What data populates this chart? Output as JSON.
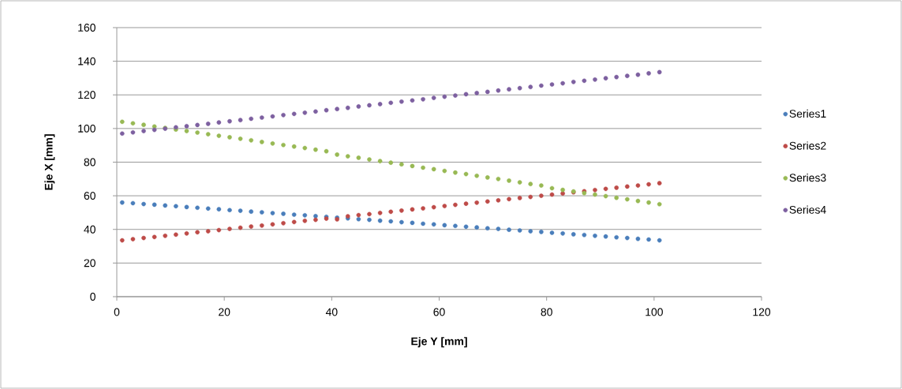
{
  "chart_data": {
    "type": "scatter",
    "xlabel": "Eje Y [mm]",
    "ylabel": "Eje X [mm]",
    "x": [
      1,
      3,
      5,
      7,
      9,
      11,
      13,
      15,
      17,
      19,
      21,
      23,
      25,
      27,
      29,
      31,
      33,
      35,
      37,
      39,
      41,
      43,
      45,
      47,
      49,
      51,
      53,
      55,
      57,
      59,
      61,
      63,
      65,
      67,
      69,
      71,
      73,
      75,
      77,
      79,
      81,
      83,
      85,
      87,
      89,
      91,
      93,
      95,
      97,
      99,
      101
    ],
    "series": [
      {
        "name": "Series1",
        "color": "#4a7ebb",
        "values": [
          56.0,
          55.6,
          55.1,
          54.7,
          54.2,
          53.8,
          53.3,
          52.9,
          52.4,
          52.0,
          51.5,
          51.1,
          50.6,
          50.2,
          49.7,
          49.3,
          48.8,
          48.4,
          47.9,
          47.5,
          47.0,
          46.6,
          46.1,
          45.7,
          45.2,
          44.8,
          44.3,
          43.9,
          43.4,
          43.0,
          42.5,
          42.1,
          41.6,
          41.2,
          40.7,
          40.3,
          39.8,
          39.4,
          38.9,
          38.5,
          38.0,
          37.6,
          37.1,
          36.7,
          36.2,
          35.8,
          35.3,
          34.9,
          34.4,
          34.0,
          33.5
        ]
      },
      {
        "name": "Series2",
        "color": "#be4b48",
        "values": [
          33.5,
          34.2,
          34.9,
          35.5,
          36.2,
          36.9,
          37.6,
          38.3,
          38.9,
          39.6,
          40.3,
          41.0,
          41.7,
          42.3,
          43.0,
          43.7,
          44.4,
          45.1,
          45.7,
          46.4,
          46.0,
          47.8,
          48.5,
          49.1,
          49.8,
          50.5,
          51.2,
          51.9,
          52.5,
          53.2,
          53.9,
          54.6,
          55.3,
          55.9,
          56.6,
          57.3,
          58.0,
          58.7,
          59.3,
          60.0,
          60.7,
          61.4,
          62.1,
          62.7,
          63.4,
          64.1,
          64.8,
          65.5,
          66.1,
          66.8,
          67.5
        ]
      },
      {
        "name": "Series3",
        "color": "#98b954",
        "values": [
          104.0,
          103.1,
          102.2,
          101.2,
          100.3,
          99.4,
          98.5,
          97.6,
          96.6,
          95.7,
          94.8,
          93.9,
          93.0,
          92.0,
          91.1,
          90.2,
          89.3,
          88.4,
          87.4,
          86.5,
          84.5,
          83.5,
          82.6,
          81.6,
          80.6,
          79.7,
          78.7,
          77.7,
          76.7,
          75.8,
          74.8,
          73.8,
          72.9,
          71.9,
          70.9,
          70.0,
          69.0,
          68.0,
          67.0,
          66.1,
          64.5,
          63.5,
          62.6,
          61.6,
          60.7,
          59.8,
          58.8,
          57.9,
          56.9,
          56.0,
          55.0
        ]
      },
      {
        "name": "Series4",
        "color": "#7d60a0",
        "values": [
          97.0,
          97.7,
          98.5,
          99.2,
          99.9,
          100.7,
          101.4,
          102.1,
          102.8,
          103.6,
          104.3,
          105.0,
          105.8,
          106.5,
          107.2,
          108.0,
          108.7,
          109.4,
          110.1,
          110.9,
          111.6,
          112.3,
          113.1,
          113.8,
          114.5,
          115.3,
          116.0,
          116.7,
          117.4,
          118.2,
          118.9,
          119.6,
          120.4,
          121.1,
          121.8,
          122.6,
          123.3,
          124.0,
          124.7,
          125.5,
          126.2,
          126.9,
          127.7,
          128.4,
          129.1,
          129.9,
          130.6,
          131.3,
          132.0,
          132.8,
          133.5
        ]
      }
    ],
    "xlim": [
      0,
      120
    ],
    "ylim": [
      0,
      160
    ],
    "xticks": [
      0,
      20,
      40,
      60,
      80,
      100,
      120
    ],
    "yticks": [
      0,
      20,
      40,
      60,
      80,
      100,
      120,
      140,
      160
    ],
    "grid": "y",
    "legend": "right",
    "marker": "circle"
  }
}
